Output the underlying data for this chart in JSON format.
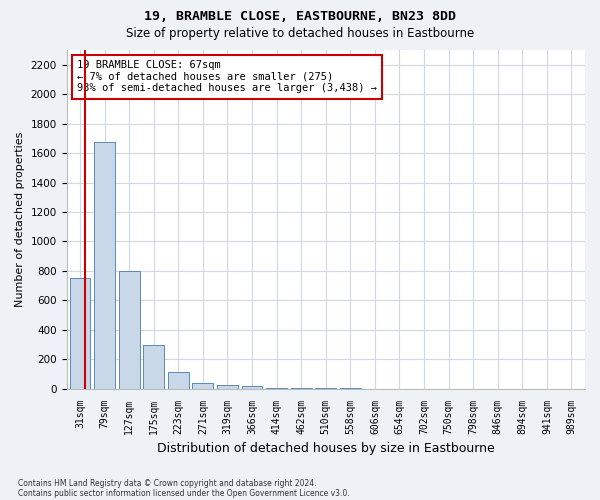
{
  "title1": "19, BRAMBLE CLOSE, EASTBOURNE, BN23 8DD",
  "title2": "Size of property relative to detached houses in Eastbourne",
  "xlabel": "Distribution of detached houses by size in Eastbourne",
  "ylabel": "Number of detached properties",
  "footnote1": "Contains HM Land Registry data © Crown copyright and database right 2024.",
  "footnote2": "Contains public sector information licensed under the Open Government Licence v3.0.",
  "bin_labels": [
    "31sqm",
    "79sqm",
    "127sqm",
    "175sqm",
    "223sqm",
    "271sqm",
    "319sqm",
    "366sqm",
    "414sqm",
    "462sqm",
    "510sqm",
    "558sqm",
    "606sqm",
    "654sqm",
    "702sqm",
    "750sqm",
    "798sqm",
    "846sqm",
    "894sqm",
    "941sqm",
    "989sqm"
  ],
  "bar_values": [
    750,
    1675,
    800,
    300,
    110,
    40,
    25,
    15,
    5,
    5,
    5,
    5,
    0,
    0,
    0,
    0,
    0,
    0,
    0,
    0,
    0
  ],
  "bar_color": "#c8d8e8",
  "bar_edge_color": "#5a8ab8",
  "property_line_color": "#cc0000",
  "annotation_text": "19 BRAMBLE CLOSE: 67sqm\n← 7% of detached houses are smaller (275)\n93% of semi-detached houses are larger (3,438) →",
  "annotation_box_color": "#ffffff",
  "annotation_box_edge": "#cc0000",
  "ylim": [
    0,
    2300
  ],
  "yticks": [
    0,
    200,
    400,
    600,
    800,
    1000,
    1200,
    1400,
    1600,
    1800,
    2000,
    2200
  ],
  "grid_color": "#d0d8e4",
  "plot_bg_color": "#ffffff",
  "fig_bg_color": "#eef2f7"
}
